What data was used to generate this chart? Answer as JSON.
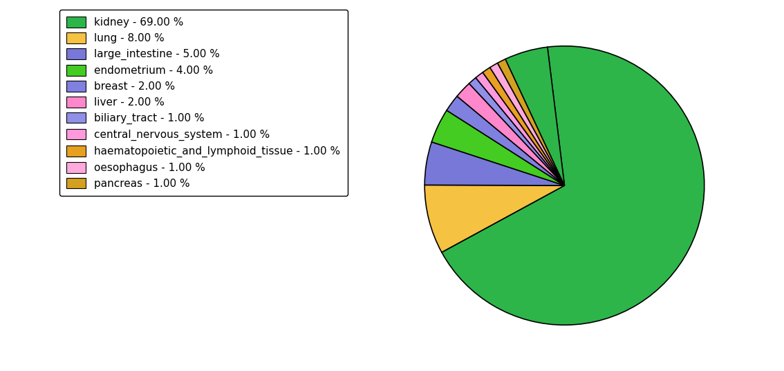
{
  "legend_labels": [
    "kidney - 69.00 %",
    "lung - 8.00 %",
    "large_intestine - 5.00 %",
    "endometrium - 4.00 %",
    "breast - 2.00 %",
    "liver - 2.00 %",
    "biliary_tract - 1.00 %",
    "central_nervous_system - 1.00 %",
    "haematopoietic_and_lymphoid_tissue - 1.00 %",
    "oesophagus - 1.00 %",
    "pancreas - 1.00 %"
  ],
  "pie_values": [
    69,
    8,
    5,
    4,
    2,
    2,
    1,
    1,
    1,
    1,
    1,
    5
  ],
  "pie_colors": [
    "#2db54a",
    "#f5c242",
    "#7878d8",
    "#44cc22",
    "#8080e0",
    "#ff88cc",
    "#9090e8",
    "#ff99dd",
    "#e8a020",
    "#ffaadd",
    "#d4a020",
    "#2db54a"
  ],
  "legend_colors": [
    "#2db54a",
    "#f5c242",
    "#7878d8",
    "#44cc22",
    "#8080e0",
    "#ff88cc",
    "#9090e8",
    "#ff99dd",
    "#e8a020",
    "#ffaadd",
    "#d4a020"
  ],
  "background_color": "#ffffff",
  "startangle": 97,
  "counterclock": false
}
